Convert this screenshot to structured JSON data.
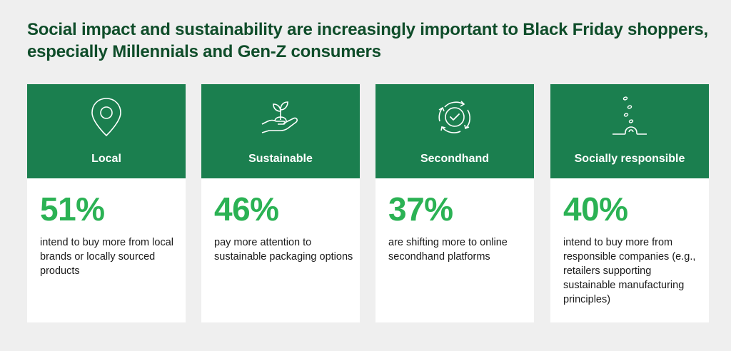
{
  "title": "Social impact and sustainability are increasingly important to Black Friday shoppers, especially Millennials and Gen-Z consumers",
  "colors": {
    "title": "#0f4d2a",
    "header_bg": "#1b7f4f",
    "value": "#2bb254"
  },
  "cards": [
    {
      "icon": "location-pin-icon",
      "label": "Local",
      "value": "51%",
      "description": "intend to buy more from local brands or locally sourced products"
    },
    {
      "icon": "hand-sprout-icon",
      "label": "Sustainable",
      "value": "46%",
      "description": "pay more attention to sustainable packaging options"
    },
    {
      "icon": "recycle-check-icon",
      "label": "Secondhand",
      "value": "37%",
      "description": "are shifting more to online secondhand platforms"
    },
    {
      "icon": "seeds-growth-icon",
      "label": "Socially responsible",
      "value": "40%",
      "description": "intend to buy more from responsible companies (e.g., retailers supporting sustainable manufacturing principles)"
    }
  ]
}
